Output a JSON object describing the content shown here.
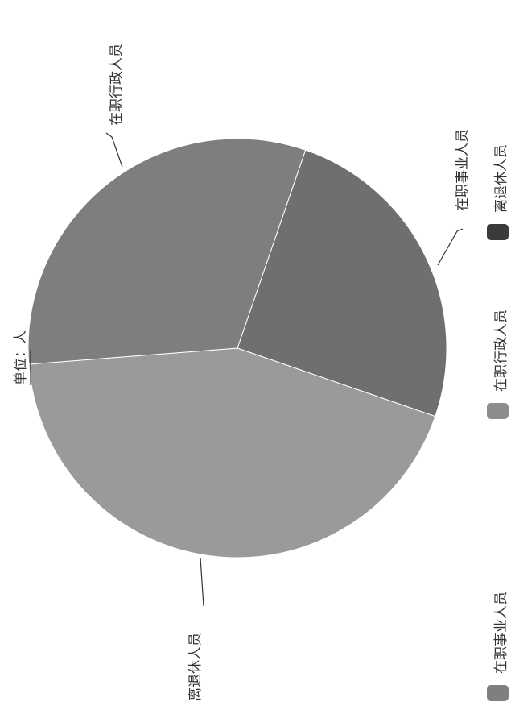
{
  "chart_data": {
    "type": "pie",
    "unit_label": "单位：人",
    "categories": [
      "在职事业人员",
      "在职行政人员",
      "离退休人员"
    ],
    "values": [
      25.0,
      31.5,
      43.5
    ],
    "legend": {
      "placement": "right",
      "items": [
        {
          "label": "在职事业人员",
          "color": "#7f7f7f"
        },
        {
          "label": "在职行政人员",
          "color": "#8c8c8c"
        },
        {
          "label": "离退休人员",
          "color": "#3a3a3a"
        }
      ]
    },
    "slice_colors": {
      "在职事业人员": "#6f6f6f",
      "在职行政人员": "#7e7e7e",
      "离退休人员": "#9a9a9a"
    }
  }
}
